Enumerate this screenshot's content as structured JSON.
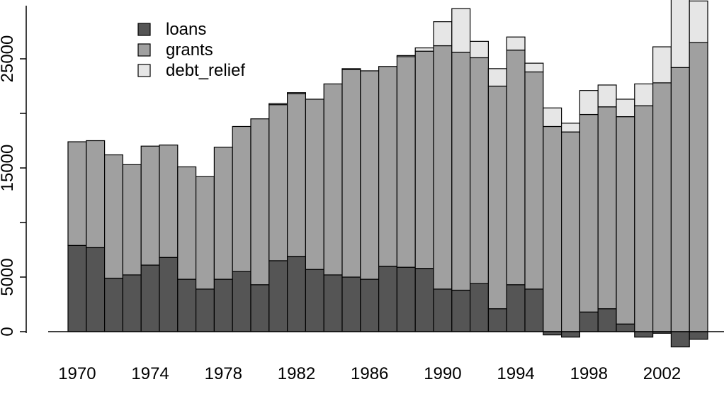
{
  "chart_data": {
    "type": "bar",
    "stacked": true,
    "title": "",
    "xlabel": "",
    "ylabel": "",
    "ylim": [
      -1500,
      30500
    ],
    "yticks": [
      0,
      5000,
      15000,
      25000
    ],
    "ytick_labels": [
      "0",
      "5000",
      "15000",
      "25000"
    ],
    "xtick_labels": [
      "1970",
      "1974",
      "1978",
      "1982",
      "1986",
      "1990",
      "1994",
      "1998",
      "2002"
    ],
    "categories": [
      "1970",
      "1971",
      "1972",
      "1973",
      "1974",
      "1975",
      "1976",
      "1977",
      "1978",
      "1979",
      "1980",
      "1981",
      "1982",
      "1983",
      "1984",
      "1985",
      "1986",
      "1987",
      "1988",
      "1989",
      "1990",
      "1991",
      "1992",
      "1993",
      "1994",
      "1995",
      "1996",
      "1997",
      "1998",
      "1999",
      "2000",
      "2001",
      "2002",
      "2003",
      "2004"
    ],
    "series": [
      {
        "name": "loans",
        "color": "#555555",
        "values": [
          7900,
          7700,
          4900,
          5200,
          6100,
          6800,
          4800,
          3900,
          4800,
          5500,
          4300,
          6500,
          6900,
          5700,
          5200,
          5000,
          4800,
          6000,
          5900,
          5800,
          3900,
          3800,
          4400,
          2100,
          4300,
          3900,
          -300,
          -500,
          1800,
          2100,
          700,
          -500,
          -150,
          -1400,
          -700
        ]
      },
      {
        "name": "grants",
        "color": "#a0a0a0",
        "values": [
          9500,
          9800,
          11300,
          10100,
          10900,
          10300,
          10300,
          10300,
          12100,
          13300,
          15200,
          14300,
          14900,
          15600,
          17500,
          19000,
          19100,
          18300,
          19300,
          19900,
          22300,
          21800,
          20700,
          20400,
          21500,
          19900,
          18800,
          18300,
          18100,
          18500,
          19000,
          20700,
          22800,
          24200,
          26500
        ]
      },
      {
        "name": "debt_relief",
        "color": "#e6e6e6",
        "values": [
          0,
          0,
          0,
          0,
          0,
          0,
          0,
          0,
          0,
          0,
          0,
          100,
          100,
          0,
          0,
          100,
          0,
          0,
          100,
          300,
          2200,
          4000,
          1500,
          1600,
          1200,
          800,
          1700,
          800,
          2200,
          2000,
          1600,
          2000,
          3300,
          6300,
          3800
        ]
      }
    ],
    "legend": {
      "position": "top-left",
      "entries": [
        "loans",
        "grants",
        "debt_relief"
      ]
    },
    "grid": false
  }
}
